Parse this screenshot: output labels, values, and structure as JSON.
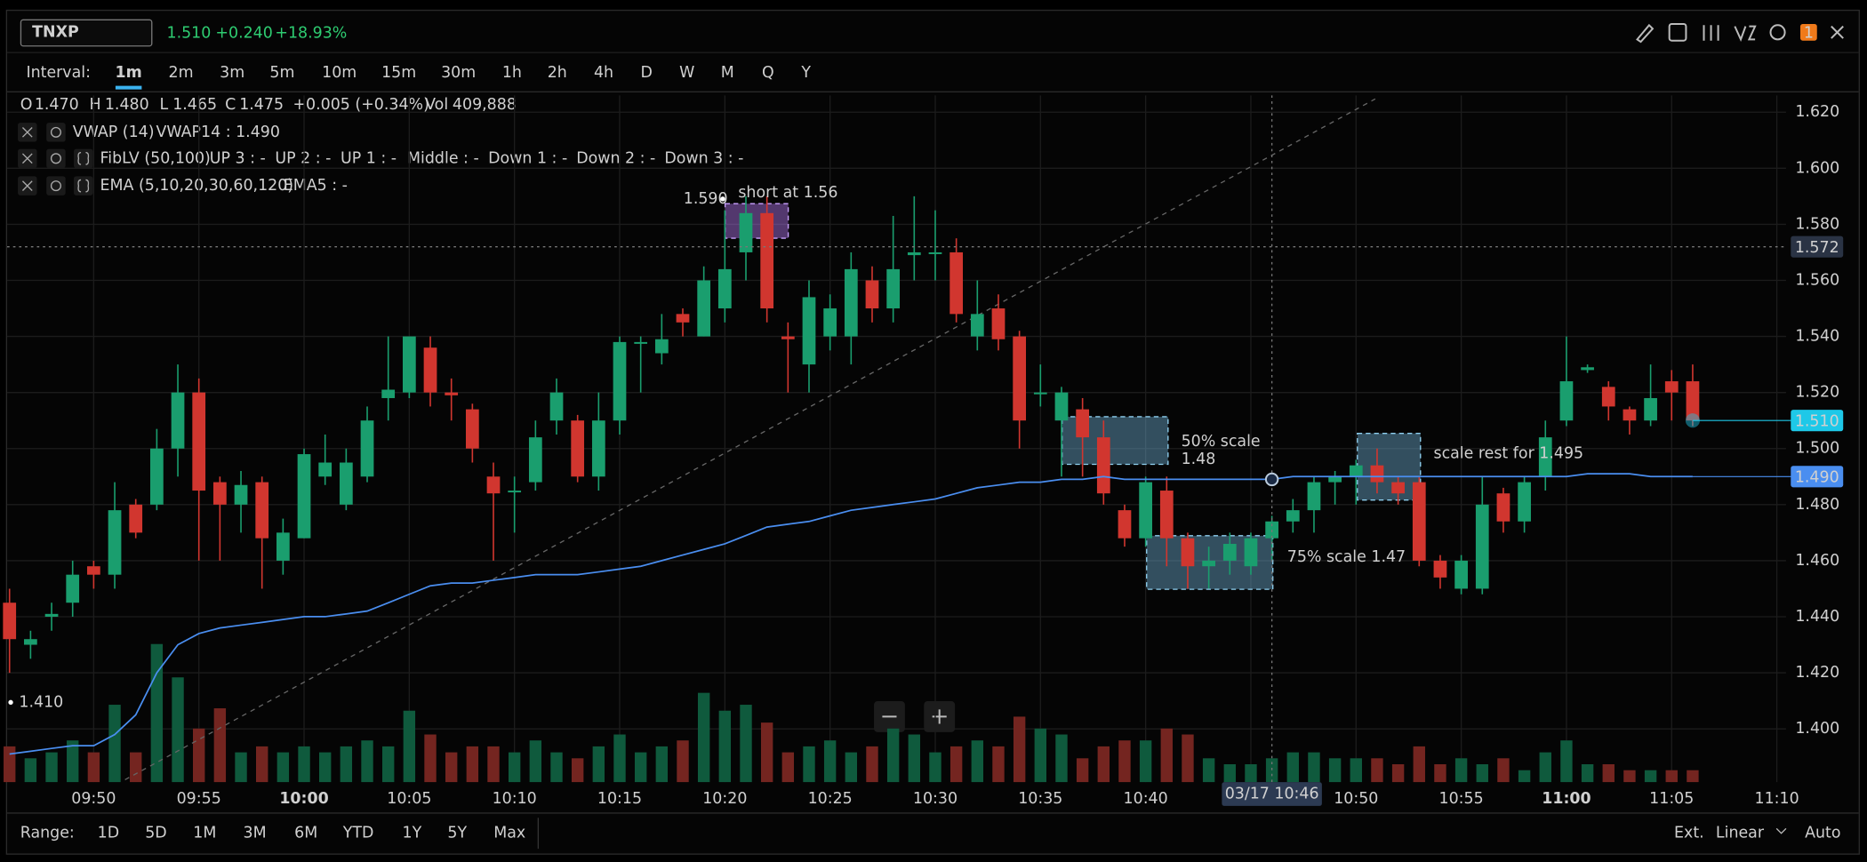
{
  "header": {
    "symbol": "TNXP",
    "last": "1.510",
    "change": "+0.240",
    "change_pct": "+18.93%",
    "notifications": "1"
  },
  "intervals": {
    "label": "Interval:",
    "options": [
      "1m",
      "2m",
      "3m",
      "5m",
      "10m",
      "15m",
      "30m",
      "1h",
      "2h",
      "4h",
      "D",
      "W",
      "M",
      "Q",
      "Y"
    ],
    "active": 0
  },
  "ohlc_row": {
    "o_label": "O",
    "o": "1.470",
    "h_label": "H",
    "h": "1.480",
    "l_label": "L",
    "l": "1.465",
    "c_label": "C",
    "c": "1.475",
    "change": "+0.005 (+0.34%)",
    "vol_label": "Vol",
    "vol": "409,888"
  },
  "indicators": [
    {
      "name": "VWAP (14)",
      "values": [
        "VWAP14 : 1.490"
      ]
    },
    {
      "name": "FibLV (50,100)",
      "values": [
        "UP 3 : -",
        "UP 2 : -",
        "UP 1 : -",
        "Middle : -",
        "Down 1 : -",
        "Down 2 : -",
        "Down 3 : -"
      ]
    },
    {
      "name": "EMA (5,10,20,30,60,120)",
      "values": [
        "EMA5 : -"
      ]
    }
  ],
  "chart_data": {
    "type": "candlestick",
    "categories": [
      null,
      null,
      null,
      null,
      "09:50",
      null,
      null,
      null,
      null,
      "09:55",
      null,
      null,
      null,
      null,
      "10:00",
      null,
      null,
      null,
      null,
      "10:05",
      null,
      null,
      null,
      null,
      "10:10",
      null,
      null,
      null,
      null,
      "10:15",
      null,
      null,
      null,
      null,
      "10:20",
      null,
      null,
      null,
      null,
      "10:25",
      null,
      null,
      null,
      null,
      "10:30",
      null,
      null,
      null,
      null,
      "10:35",
      null,
      null,
      null,
      null,
      "10:40",
      null,
      null,
      null,
      null,
      null,
      null,
      null,
      null,
      null,
      "10:50",
      null,
      null,
      null,
      null,
      "10:55",
      null,
      null,
      null,
      null,
      "11:00",
      null,
      null,
      null,
      null,
      "11:05",
      null,
      null,
      null,
      null,
      "11:10"
    ],
    "open": [
      1.445,
      1.43,
      1.44,
      1.445,
      1.458,
      1.455,
      1.48,
      1.48,
      1.5,
      1.52,
      1.488,
      1.48,
      1.488,
      1.46,
      1.468,
      1.49,
      1.48,
      1.49,
      1.518,
      1.52,
      1.536,
      1.52,
      1.514,
      1.49,
      1.485,
      1.488,
      1.51,
      1.51,
      1.49,
      1.51,
      1.538,
      1.534,
      1.548,
      1.54,
      1.55,
      1.57,
      1.584,
      1.54,
      1.53,
      1.54,
      1.54,
      1.56,
      1.55,
      1.569,
      1.57,
      1.57,
      1.54,
      1.55,
      1.54,
      1.52,
      1.51,
      1.514,
      1.504,
      1.478,
      1.468,
      1.485,
      1.468,
      1.458,
      1.46,
      1.458,
      1.468,
      1.474,
      1.478,
      1.488,
      1.49,
      1.494,
      1.488,
      1.488,
      1.46,
      1.45,
      1.45,
      1.484,
      1.474,
      1.49,
      1.51,
      1.528,
      1.522,
      1.514,
      1.51,
      1.524,
      1.524,
      null,
      null,
      null,
      null
    ],
    "high": [
      1.45,
      1.435,
      1.445,
      1.46,
      1.46,
      1.488,
      1.482,
      1.507,
      1.53,
      1.525,
      1.49,
      1.492,
      1.49,
      1.475,
      1.5,
      1.505,
      1.5,
      1.515,
      1.54,
      1.54,
      1.54,
      1.525,
      1.516,
      1.495,
      1.49,
      1.51,
      1.525,
      1.512,
      1.52,
      1.54,
      1.54,
      1.548,
      1.55,
      1.565,
      1.585,
      1.59,
      1.59,
      1.545,
      1.56,
      1.555,
      1.57,
      1.565,
      1.583,
      1.59,
      1.585,
      1.575,
      1.56,
      1.555,
      1.542,
      1.53,
      1.522,
      1.518,
      1.51,
      1.48,
      1.49,
      1.49,
      1.47,
      1.465,
      1.47,
      1.47,
      1.476,
      1.482,
      1.49,
      1.492,
      1.496,
      1.5,
      1.49,
      1.49,
      1.462,
      1.462,
      1.49,
      1.486,
      1.49,
      1.51,
      1.54,
      1.53,
      1.524,
      1.515,
      1.53,
      1.528,
      1.53,
      null,
      null,
      null,
      null
    ],
    "low": [
      1.42,
      1.425,
      1.435,
      1.44,
      1.45,
      1.45,
      1.468,
      1.478,
      1.49,
      1.46,
      1.46,
      1.47,
      1.45,
      1.455,
      1.468,
      1.487,
      1.478,
      1.488,
      1.51,
      1.518,
      1.515,
      1.51,
      1.495,
      1.46,
      1.47,
      1.485,
      1.505,
      1.488,
      1.485,
      1.505,
      1.52,
      1.53,
      1.54,
      1.54,
      1.545,
      1.56,
      1.545,
      1.52,
      1.52,
      1.535,
      1.53,
      1.545,
      1.545,
      1.56,
      1.56,
      1.545,
      1.535,
      1.535,
      1.5,
      1.515,
      1.49,
      1.49,
      1.48,
      1.465,
      1.465,
      1.458,
      1.45,
      1.45,
      1.455,
      1.455,
      1.46,
      1.47,
      1.47,
      1.48,
      1.48,
      1.484,
      1.48,
      1.458,
      1.45,
      1.448,
      1.448,
      1.47,
      1.47,
      1.485,
      1.508,
      1.527,
      1.51,
      1.505,
      1.508,
      1.51,
      1.508,
      null,
      null,
      null,
      null
    ],
    "close": [
      1.432,
      1.432,
      1.441,
      1.455,
      1.455,
      1.478,
      1.47,
      1.5,
      1.52,
      1.485,
      1.48,
      1.487,
      1.468,
      1.47,
      1.498,
      1.495,
      1.495,
      1.51,
      1.521,
      1.54,
      1.52,
      1.519,
      1.5,
      1.484,
      1.485,
      1.504,
      1.52,
      1.49,
      1.51,
      1.538,
      1.538,
      1.539,
      1.545,
      1.56,
      1.564,
      1.584,
      1.55,
      1.539,
      1.554,
      1.55,
      1.564,
      1.55,
      1.564,
      1.57,
      1.57,
      1.548,
      1.548,
      1.539,
      1.51,
      1.52,
      1.52,
      1.504,
      1.484,
      1.468,
      1.488,
      1.468,
      1.458,
      1.46,
      1.466,
      1.468,
      1.474,
      1.478,
      1.488,
      1.49,
      1.494,
      1.488,
      1.484,
      1.46,
      1.454,
      1.46,
      1.48,
      1.474,
      1.488,
      1.504,
      1.524,
      1.529,
      1.515,
      1.51,
      1.518,
      1.52,
      1.51,
      null,
      null,
      null,
      null
    ],
    "volume": [
      6000,
      4000,
      5000,
      7000,
      5000,
      13000,
      5000,
      23200,
      17600,
      9000,
      12400,
      5000,
      6000,
      5000,
      6000,
      5000,
      6000,
      7000,
      6000,
      12000,
      8000,
      5000,
      6000,
      6000,
      5000,
      7000,
      5000,
      4000,
      6000,
      8000,
      5000,
      6000,
      7000,
      15000,
      12000,
      13000,
      10000,
      5000,
      6000,
      7000,
      5000,
      6000,
      9000,
      8000,
      5000,
      6000,
      7000,
      6000,
      11000,
      9000,
      8000,
      4000,
      6000,
      7000,
      7000,
      9000,
      8000,
      4000,
      3000,
      3000,
      4000,
      5000,
      5000,
      4000,
      4000,
      4000,
      3000,
      6000,
      3000,
      4000,
      3000,
      4000,
      2000,
      5000,
      7000,
      3000,
      3000,
      2000,
      2000,
      2000,
      2000,
      null,
      null,
      null,
      null
    ],
    "vwap": {
      "color": "#4a8ef0",
      "values": [
        1.391,
        1.392,
        1.393,
        1.394,
        1.394,
        1.398,
        1.405,
        1.42,
        1.43,
        1.434,
        1.436,
        1.437,
        1.438,
        1.439,
        1.44,
        1.44,
        1.441,
        1.442,
        1.445,
        1.448,
        1.451,
        1.452,
        1.452,
        1.453,
        1.454,
        1.455,
        1.455,
        1.455,
        1.456,
        1.457,
        1.458,
        1.46,
        1.462,
        1.464,
        1.466,
        1.469,
        1.472,
        1.473,
        1.474,
        1.476,
        1.478,
        1.479,
        1.48,
        1.481,
        1.482,
        1.484,
        1.486,
        1.487,
        1.488,
        1.488,
        1.489,
        1.489,
        1.49,
        1.489,
        1.489,
        1.489,
        1.489,
        1.489,
        1.489,
        1.489,
        1.489,
        1.49,
        1.49,
        1.49,
        1.49,
        1.49,
        1.49,
        1.49,
        1.49,
        1.49,
        1.49,
        1.49,
        1.49,
        1.49,
        1.49,
        1.491,
        1.491,
        1.491,
        1.49,
        1.49,
        1.49,
        null,
        null,
        null,
        null
      ]
    },
    "up_color": "#1a9e6e",
    "down_color": "#d1362f",
    "up_volume_color": "#0f5a3d",
    "down_volume_color": "#742520",
    "ylim": [
      1.381,
      1.626
    ],
    "yticks": [
      {
        "value": 1.4,
        "label": "1.400"
      },
      {
        "value": 1.42,
        "label": "1.420"
      },
      {
        "value": 1.44,
        "label": "1.440"
      },
      {
        "value": 1.46,
        "label": "1.460"
      },
      {
        "value": 1.48,
        "label": "1.480"
      },
      {
        "value": 1.5,
        "label": "1.500"
      },
      {
        "value": 1.52,
        "label": "1.520"
      },
      {
        "value": 1.54,
        "label": "1.540"
      },
      {
        "value": 1.56,
        "label": "1.560"
      },
      {
        "value": 1.58,
        "label": "1.580"
      },
      {
        "value": 1.6,
        "label": "1.600"
      },
      {
        "value": 1.62,
        "label": "1.620"
      }
    ],
    "badges": [
      {
        "value": 1.572,
        "label": "1.572",
        "color": "#2a3344"
      },
      {
        "value": 1.51,
        "label": "1.510",
        "color": "#1ec8e8"
      },
      {
        "value": 1.49,
        "label": "1.490",
        "color": "#4a8ef0"
      }
    ],
    "grid": true,
    "annotations": [
      "1.590",
      "short at 1.56",
      "50% scale",
      "1.48",
      "75% scale 1.47",
      "scale rest for 1.495",
      "1.410",
      "03/17 10:46"
    ]
  },
  "range_bar": {
    "label": "Range:",
    "options": [
      "1D",
      "5D",
      "1M",
      "3M",
      "6M",
      "YTD",
      "1Y",
      "5Y",
      "Max"
    ]
  },
  "footer_right": [
    "Ext.",
    "Linear",
    "Auto"
  ]
}
